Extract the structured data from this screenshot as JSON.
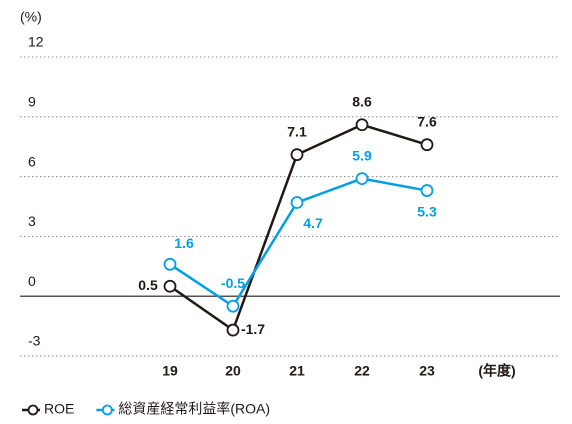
{
  "chart_data": {
    "type": "line",
    "y_unit": "(%)",
    "x_unit": "(年度)",
    "categories": [
      "19",
      "20",
      "21",
      "22",
      "23"
    ],
    "series": [
      {
        "name": "ROE",
        "color": "#231815",
        "values": [
          0.5,
          -1.7,
          7.1,
          8.6,
          7.6
        ]
      },
      {
        "name": "総資産経常利益率(ROA)",
        "color": "#00a0e9",
        "values": [
          1.6,
          -0.5,
          4.7,
          5.9,
          5.3
        ]
      }
    ],
    "ylim": [
      -3,
      12
    ],
    "yticks": [
      12,
      9,
      6,
      3,
      0,
      -3
    ],
    "grid": true
  }
}
